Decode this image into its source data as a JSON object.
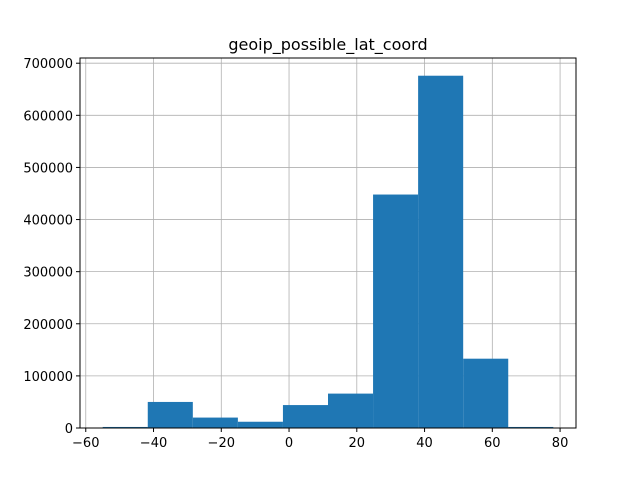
{
  "chart_data": {
    "type": "bar",
    "title": "geoip_possible_lat_coord",
    "xlabel": "",
    "ylabel": "",
    "bar_color": "#1f77b4",
    "grid_color": "#b0b0b0",
    "grid": true,
    "xlim": [
      -61.7,
      84.7
    ],
    "ylim": [
      0,
      710000
    ],
    "x_ticks": [
      -60,
      -40,
      -20,
      0,
      20,
      40,
      60,
      80
    ],
    "y_ticks": [
      0,
      100000,
      200000,
      300000,
      400000,
      500000,
      600000,
      700000
    ],
    "x_tick_labels": [
      "−60",
      "−40",
      "−20",
      "0",
      "20",
      "40",
      "60",
      "80"
    ],
    "y_tick_labels": [
      "0",
      "100000",
      "200000",
      "300000",
      "400000",
      "500000",
      "600000",
      "700000"
    ],
    "bins": [
      {
        "x0": -55.0,
        "x1": -41.7,
        "value": 2000
      },
      {
        "x0": -41.7,
        "x1": -28.4,
        "value": 50000
      },
      {
        "x0": -28.4,
        "x1": -15.1,
        "value": 20000
      },
      {
        "x0": -15.1,
        "x1": -1.8,
        "value": 12000
      },
      {
        "x0": -1.8,
        "x1": 11.5,
        "value": 44000
      },
      {
        "x0": 11.5,
        "x1": 24.8,
        "value": 66000
      },
      {
        "x0": 24.8,
        "x1": 38.1,
        "value": 448000
      },
      {
        "x0": 38.1,
        "x1": 51.4,
        "value": 676000
      },
      {
        "x0": 51.4,
        "x1": 64.7,
        "value": 133000
      },
      {
        "x0": 64.7,
        "x1": 78.0,
        "value": 2000
      }
    ]
  }
}
